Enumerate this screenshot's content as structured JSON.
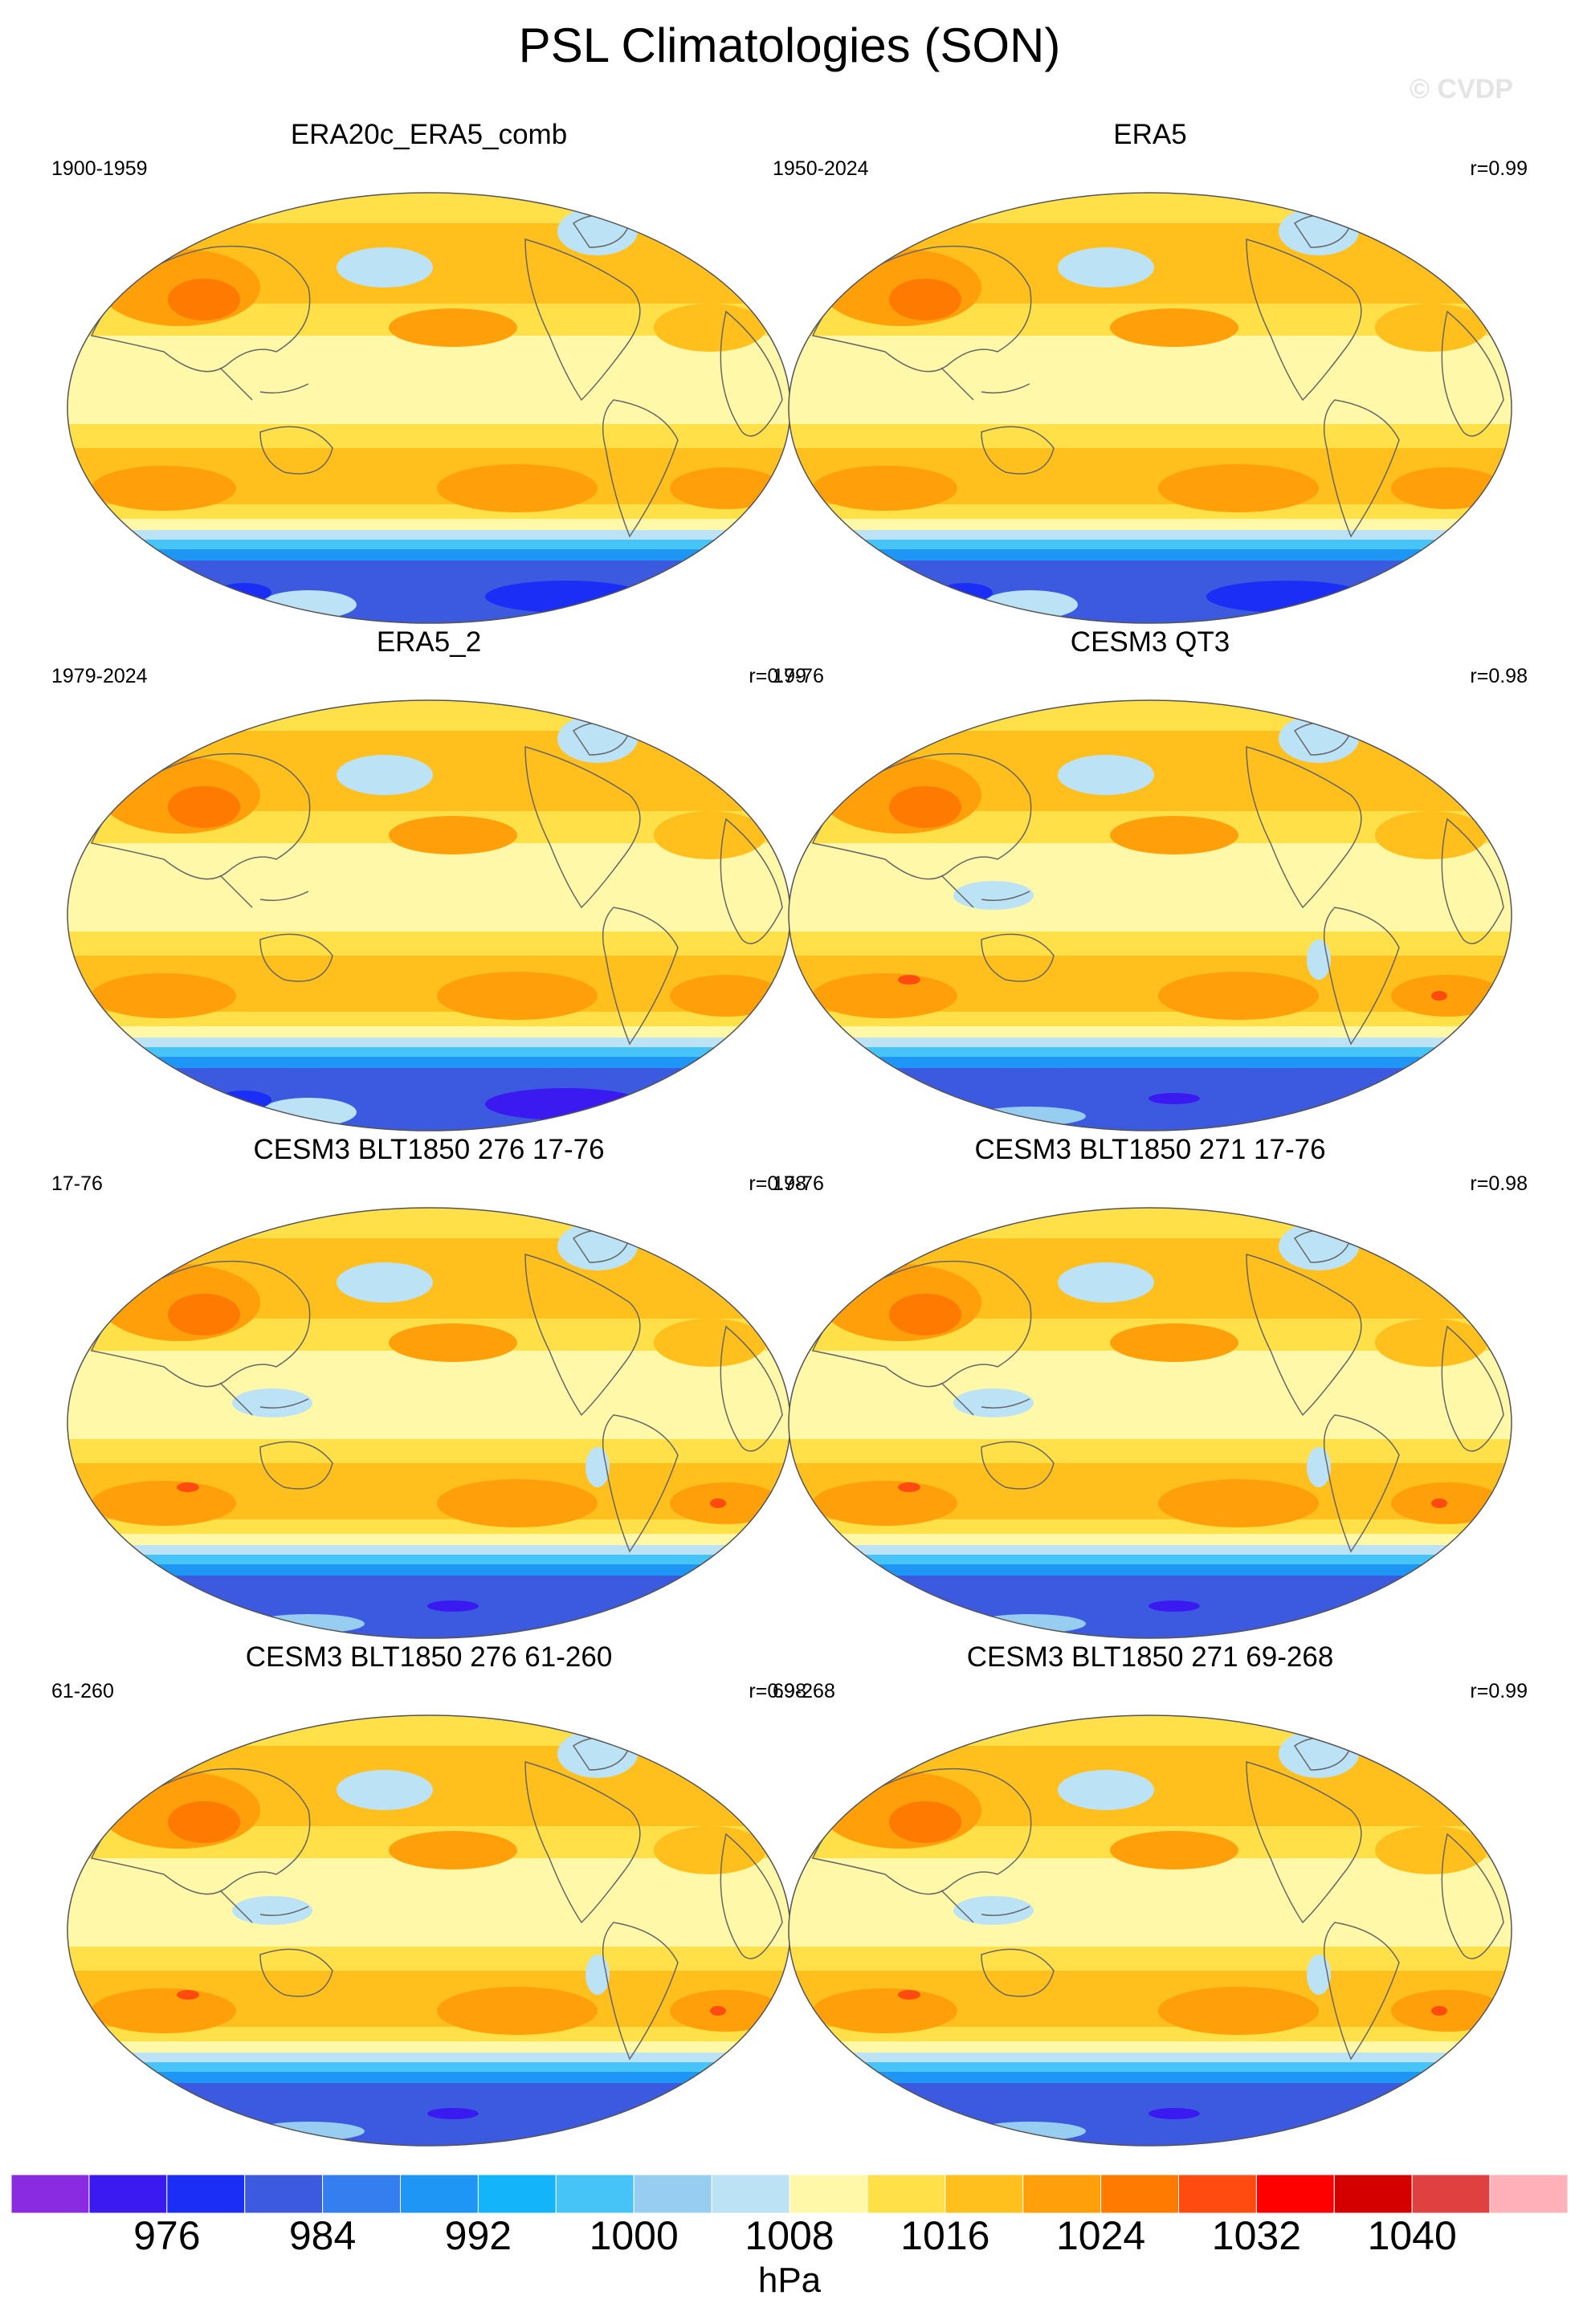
{
  "title": "PSL Climatologies (SON)",
  "watermark": "© CVDP",
  "panels": [
    {
      "title": "ERA20c_ERA5_comb",
      "left": "1900-1959",
      "right": "",
      "variant": "obs"
    },
    {
      "title": "ERA5",
      "left": "1950-2024",
      "right": "r=0.99",
      "variant": "obs"
    },
    {
      "title": "ERA5_2",
      "left": "1979-2024",
      "right": "r=0.99",
      "variant": "obs2"
    },
    {
      "title": "CESM3 QT3",
      "left": "17-76",
      "right": "r=0.98",
      "variant": "model"
    },
    {
      "title": "CESM3 BLT1850 276 17-76",
      "left": "17-76",
      "right": "r=0.98",
      "variant": "model"
    },
    {
      "title": "CESM3 BLT1850 271 17-76",
      "left": "17-76",
      "right": "r=0.98",
      "variant": "model"
    },
    {
      "title": "CESM3 BLT1850 276 61-260",
      "left": "61-260",
      "right": "r=0.98",
      "variant": "model"
    },
    {
      "title": "CESM3 BLT1850 271 69-268",
      "left": "69-268",
      "right": "r=0.99",
      "variant": "model"
    }
  ],
  "colorbar": {
    "units": "hPa",
    "labels": [
      "976",
      "984",
      "992",
      "1000",
      "1008",
      "1016",
      "1024",
      "1032",
      "1040"
    ],
    "colors": [
      "#8a2be2",
      "#3a1af0",
      "#1a2ef5",
      "#3b5ae0",
      "#357ef0",
      "#1e96f5",
      "#14b4fa",
      "#46c4f8",
      "#96cdf0",
      "#bce2f6",
      "#fff8a8",
      "#ffe048",
      "#ffbf1c",
      "#ff9f0a",
      "#ff7a00",
      "#ff4a10",
      "#ff0000",
      "#d40000",
      "#e04040",
      "#ffb0b8"
    ]
  }
}
